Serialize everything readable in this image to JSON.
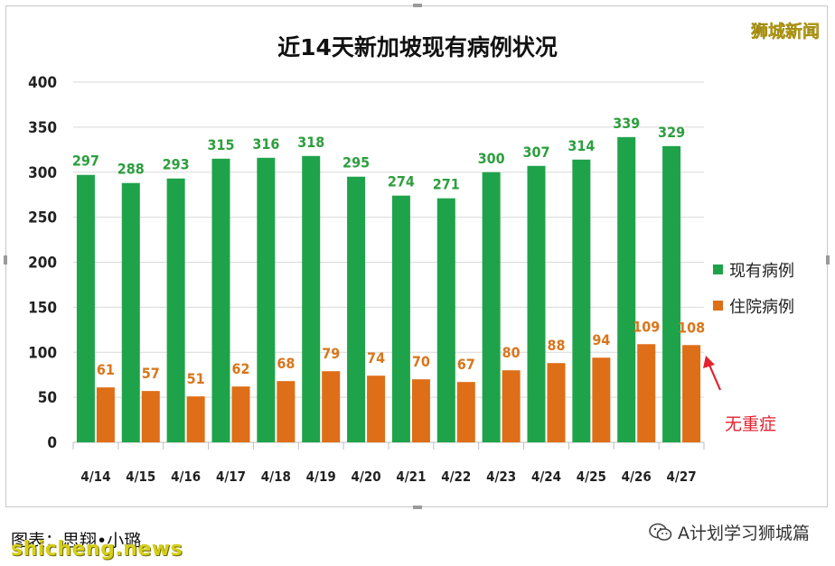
{
  "brand": "狮城新闻",
  "caption": "图表：思翔•小璐",
  "watermark": "shicheng.news",
  "account": "A计划学习狮城篇",
  "icons": {
    "account_icon": "wechat-icon",
    "note_arrow": "arrow-icon"
  },
  "colors": {
    "series_a": "#1fa34a",
    "series_b": "#de6e17",
    "label_a": "#2e9e3f",
    "label_b": "#d9761c",
    "note": "#e2222e",
    "brand": "#f2d21b"
  },
  "chart_data": {
    "type": "bar",
    "title": "近14天新加坡现有病例状况",
    "categories": [
      "4/14",
      "4/15",
      "4/16",
      "4/17",
      "4/18",
      "4/19",
      "4/20",
      "4/21",
      "4/22",
      "4/23",
      "4/24",
      "4/25",
      "4/26",
      "4/27"
    ],
    "series": [
      {
        "name": "现有病例",
        "values": [
          297,
          288,
          293,
          315,
          316,
          318,
          295,
          274,
          271,
          300,
          307,
          314,
          339,
          329
        ]
      },
      {
        "name": "住院病例",
        "values": [
          61,
          57,
          51,
          62,
          68,
          79,
          74,
          70,
          67,
          80,
          88,
          94,
          109,
          108
        ]
      }
    ],
    "ylim": [
      0,
      400
    ],
    "yticks": [
      0,
      50,
      100,
      150,
      200,
      250,
      300,
      350,
      400
    ],
    "grid": true,
    "legend": "right",
    "data_labels": true,
    "annotation": "无重症"
  }
}
